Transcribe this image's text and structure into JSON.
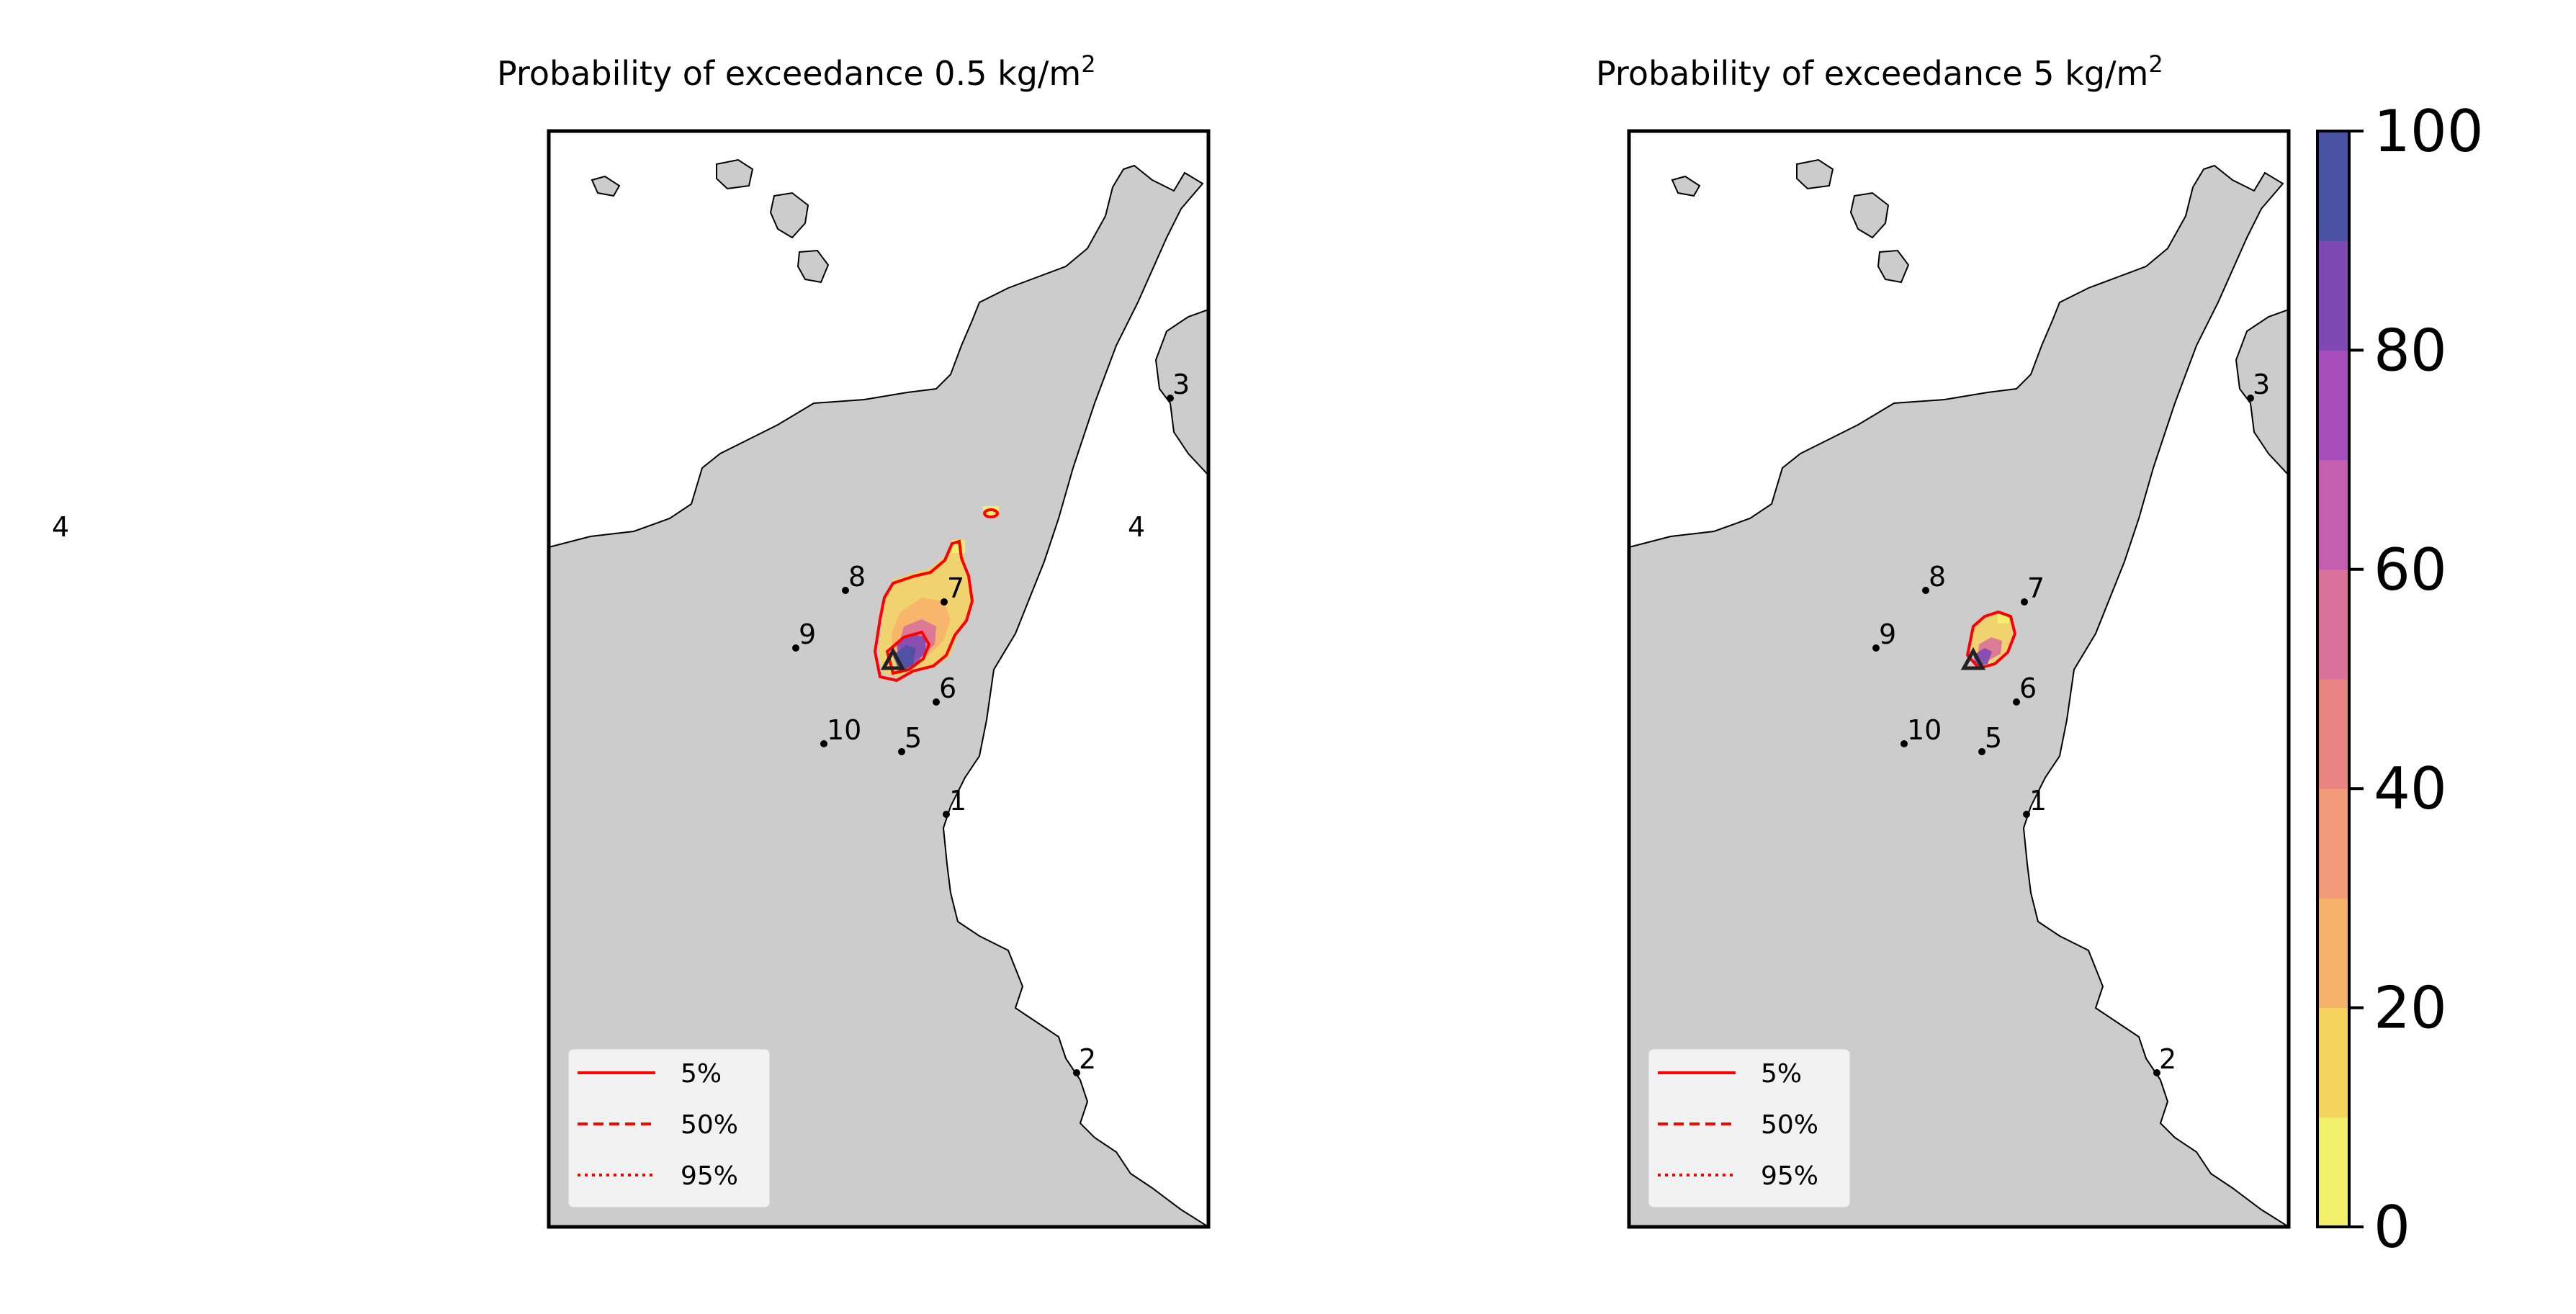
{
  "maps": [
    {
      "title": "Probability of exceedance 0.5 kg/m",
      "title_sup": "2",
      "legend": [
        "5%",
        "50%",
        "95%"
      ],
      "sites": [
        "1",
        "2",
        "3",
        "4",
        "5",
        "6",
        "7",
        "8",
        "9",
        "10"
      ],
      "outer_label": "4"
    },
    {
      "title": "Probability of exceedance 5 kg/m",
      "title_sup": "2",
      "legend": [
        "5%",
        "50%",
        "95%"
      ],
      "sites": [
        "1",
        "2",
        "3",
        "5",
        "6",
        "7",
        "8",
        "9",
        "10"
      ]
    }
  ],
  "colorbar": {
    "ticks": [
      "0",
      "20",
      "40",
      "60",
      "80",
      "100"
    ],
    "colors": [
      "#f2f06a",
      "#f6d35e",
      "#f7b26a",
      "#f29a78",
      "#e88482",
      "#d9719a",
      "#c45fb0",
      "#a64cbd",
      "#7f49b4",
      "#4a52a4"
    ]
  },
  "colors": {
    "land": "#cccccc",
    "contour": "#ff0000",
    "volcano": "#222222"
  }
}
